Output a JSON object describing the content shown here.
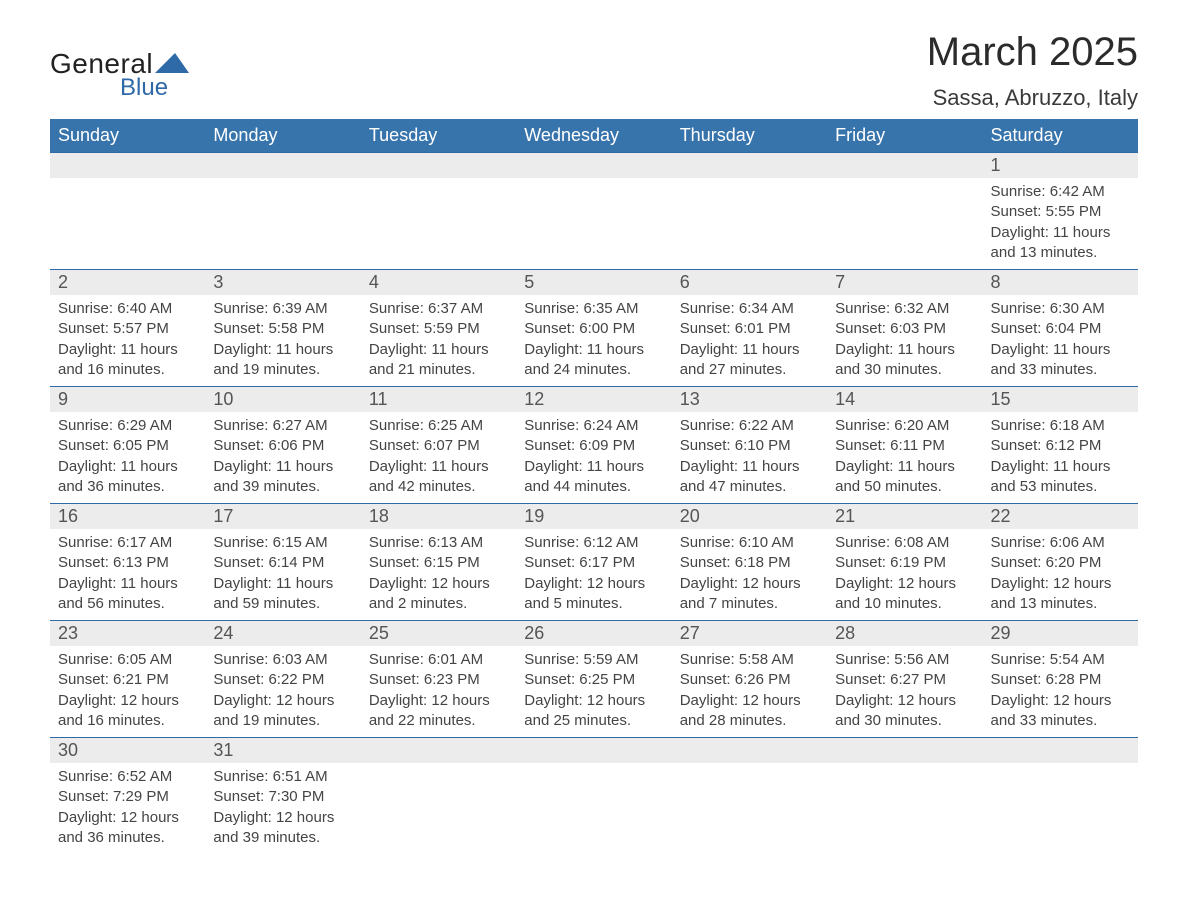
{
  "logo": {
    "text1": "General",
    "text2": "Blue",
    "triangle_color": "#2f6aa8"
  },
  "title": "March 2025",
  "subtitle": "Sassa, Abruzzo, Italy",
  "theme": {
    "header_bg": "#3874ac",
    "header_fg": "#ffffff",
    "daynum_bg": "#ececec",
    "row_border": "#2f6aa8",
    "text_color": "#3a3a3a",
    "background": "#ffffff",
    "header_fontsize": 18,
    "title_fontsize": 40,
    "subtitle_fontsize": 22,
    "cell_fontsize": 15
  },
  "columns": [
    "Sunday",
    "Monday",
    "Tuesday",
    "Wednesday",
    "Thursday",
    "Friday",
    "Saturday"
  ],
  "weeks": [
    [
      null,
      null,
      null,
      null,
      null,
      null,
      {
        "day": "1",
        "sunrise": "Sunrise: 6:42 AM",
        "sunset": "Sunset: 5:55 PM",
        "daylight": "Daylight: 11 hours and 13 minutes."
      }
    ],
    [
      {
        "day": "2",
        "sunrise": "Sunrise: 6:40 AM",
        "sunset": "Sunset: 5:57 PM",
        "daylight": "Daylight: 11 hours and 16 minutes."
      },
      {
        "day": "3",
        "sunrise": "Sunrise: 6:39 AM",
        "sunset": "Sunset: 5:58 PM",
        "daylight": "Daylight: 11 hours and 19 minutes."
      },
      {
        "day": "4",
        "sunrise": "Sunrise: 6:37 AM",
        "sunset": "Sunset: 5:59 PM",
        "daylight": "Daylight: 11 hours and 21 minutes."
      },
      {
        "day": "5",
        "sunrise": "Sunrise: 6:35 AM",
        "sunset": "Sunset: 6:00 PM",
        "daylight": "Daylight: 11 hours and 24 minutes."
      },
      {
        "day": "6",
        "sunrise": "Sunrise: 6:34 AM",
        "sunset": "Sunset: 6:01 PM",
        "daylight": "Daylight: 11 hours and 27 minutes."
      },
      {
        "day": "7",
        "sunrise": "Sunrise: 6:32 AM",
        "sunset": "Sunset: 6:03 PM",
        "daylight": "Daylight: 11 hours and 30 minutes."
      },
      {
        "day": "8",
        "sunrise": "Sunrise: 6:30 AM",
        "sunset": "Sunset: 6:04 PM",
        "daylight": "Daylight: 11 hours and 33 minutes."
      }
    ],
    [
      {
        "day": "9",
        "sunrise": "Sunrise: 6:29 AM",
        "sunset": "Sunset: 6:05 PM",
        "daylight": "Daylight: 11 hours and 36 minutes."
      },
      {
        "day": "10",
        "sunrise": "Sunrise: 6:27 AM",
        "sunset": "Sunset: 6:06 PM",
        "daylight": "Daylight: 11 hours and 39 minutes."
      },
      {
        "day": "11",
        "sunrise": "Sunrise: 6:25 AM",
        "sunset": "Sunset: 6:07 PM",
        "daylight": "Daylight: 11 hours and 42 minutes."
      },
      {
        "day": "12",
        "sunrise": "Sunrise: 6:24 AM",
        "sunset": "Sunset: 6:09 PM",
        "daylight": "Daylight: 11 hours and 44 minutes."
      },
      {
        "day": "13",
        "sunrise": "Sunrise: 6:22 AM",
        "sunset": "Sunset: 6:10 PM",
        "daylight": "Daylight: 11 hours and 47 minutes."
      },
      {
        "day": "14",
        "sunrise": "Sunrise: 6:20 AM",
        "sunset": "Sunset: 6:11 PM",
        "daylight": "Daylight: 11 hours and 50 minutes."
      },
      {
        "day": "15",
        "sunrise": "Sunrise: 6:18 AM",
        "sunset": "Sunset: 6:12 PM",
        "daylight": "Daylight: 11 hours and 53 minutes."
      }
    ],
    [
      {
        "day": "16",
        "sunrise": "Sunrise: 6:17 AM",
        "sunset": "Sunset: 6:13 PM",
        "daylight": "Daylight: 11 hours and 56 minutes."
      },
      {
        "day": "17",
        "sunrise": "Sunrise: 6:15 AM",
        "sunset": "Sunset: 6:14 PM",
        "daylight": "Daylight: 11 hours and 59 minutes."
      },
      {
        "day": "18",
        "sunrise": "Sunrise: 6:13 AM",
        "sunset": "Sunset: 6:15 PM",
        "daylight": "Daylight: 12 hours and 2 minutes."
      },
      {
        "day": "19",
        "sunrise": "Sunrise: 6:12 AM",
        "sunset": "Sunset: 6:17 PM",
        "daylight": "Daylight: 12 hours and 5 minutes."
      },
      {
        "day": "20",
        "sunrise": "Sunrise: 6:10 AM",
        "sunset": "Sunset: 6:18 PM",
        "daylight": "Daylight: 12 hours and 7 minutes."
      },
      {
        "day": "21",
        "sunrise": "Sunrise: 6:08 AM",
        "sunset": "Sunset: 6:19 PM",
        "daylight": "Daylight: 12 hours and 10 minutes."
      },
      {
        "day": "22",
        "sunrise": "Sunrise: 6:06 AM",
        "sunset": "Sunset: 6:20 PM",
        "daylight": "Daylight: 12 hours and 13 minutes."
      }
    ],
    [
      {
        "day": "23",
        "sunrise": "Sunrise: 6:05 AM",
        "sunset": "Sunset: 6:21 PM",
        "daylight": "Daylight: 12 hours and 16 minutes."
      },
      {
        "day": "24",
        "sunrise": "Sunrise: 6:03 AM",
        "sunset": "Sunset: 6:22 PM",
        "daylight": "Daylight: 12 hours and 19 minutes."
      },
      {
        "day": "25",
        "sunrise": "Sunrise: 6:01 AM",
        "sunset": "Sunset: 6:23 PM",
        "daylight": "Daylight: 12 hours and 22 minutes."
      },
      {
        "day": "26",
        "sunrise": "Sunrise: 5:59 AM",
        "sunset": "Sunset: 6:25 PM",
        "daylight": "Daylight: 12 hours and 25 minutes."
      },
      {
        "day": "27",
        "sunrise": "Sunrise: 5:58 AM",
        "sunset": "Sunset: 6:26 PM",
        "daylight": "Daylight: 12 hours and 28 minutes."
      },
      {
        "day": "28",
        "sunrise": "Sunrise: 5:56 AM",
        "sunset": "Sunset: 6:27 PM",
        "daylight": "Daylight: 12 hours and 30 minutes."
      },
      {
        "day": "29",
        "sunrise": "Sunrise: 5:54 AM",
        "sunset": "Sunset: 6:28 PM",
        "daylight": "Daylight: 12 hours and 33 minutes."
      }
    ],
    [
      {
        "day": "30",
        "sunrise": "Sunrise: 6:52 AM",
        "sunset": "Sunset: 7:29 PM",
        "daylight": "Daylight: 12 hours and 36 minutes."
      },
      {
        "day": "31",
        "sunrise": "Sunrise: 6:51 AM",
        "sunset": "Sunset: 7:30 PM",
        "daylight": "Daylight: 12 hours and 39 minutes."
      },
      null,
      null,
      null,
      null,
      null
    ]
  ]
}
